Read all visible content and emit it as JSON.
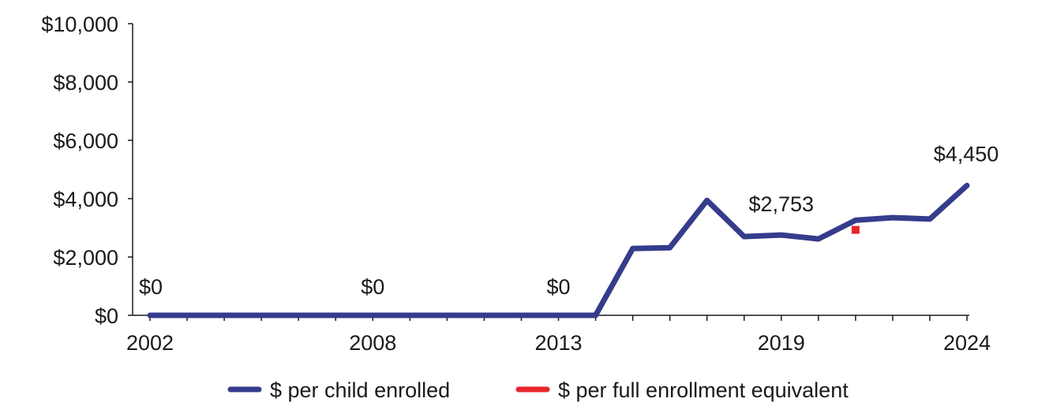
{
  "chart_data": {
    "type": "line",
    "x": [
      2002,
      2003,
      2004,
      2005,
      2006,
      2007,
      2008,
      2009,
      2010,
      2011,
      2012,
      2013,
      2014,
      2015,
      2016,
      2017,
      2018,
      2019,
      2020,
      2021,
      2022,
      2023,
      2024
    ],
    "x_tick_labels": [
      "2002",
      "2008",
      "2013",
      "2019",
      "2024"
    ],
    "x_tick_values": [
      2002,
      2008,
      2013,
      2019,
      2024
    ],
    "ylim": [
      0,
      10000
    ],
    "y_ticks": [
      0,
      2000,
      4000,
      6000,
      8000,
      10000
    ],
    "y_tick_labels": [
      "$0",
      "$2,000",
      "$4,000",
      "$6,000",
      "$8,000",
      "$10,000"
    ],
    "series": [
      {
        "name": "$ per child enrolled",
        "color": "#353c8c",
        "values": [
          0,
          0,
          0,
          0,
          0,
          0,
          0,
          0,
          0,
          0,
          0,
          0,
          0,
          2290,
          2320,
          3940,
          2700,
          2753,
          2620,
          3260,
          3350,
          3300,
          4450
        ]
      },
      {
        "name": "$ per full enrollment equivalent",
        "color": "#e8262d",
        "points": [
          {
            "x": 2021,
            "y": 2930
          }
        ]
      }
    ],
    "data_labels": [
      {
        "x": 2002,
        "y": 0,
        "text": "$0"
      },
      {
        "x": 2008,
        "y": 0,
        "text": "$0"
      },
      {
        "x": 2013,
        "y": 0,
        "text": "$0"
      },
      {
        "x": 2019,
        "y": 2753,
        "text": "$2,753"
      },
      {
        "x": 2024,
        "y": 4450,
        "text": "$4,450"
      }
    ],
    "legend": "bottom",
    "grid": false
  }
}
